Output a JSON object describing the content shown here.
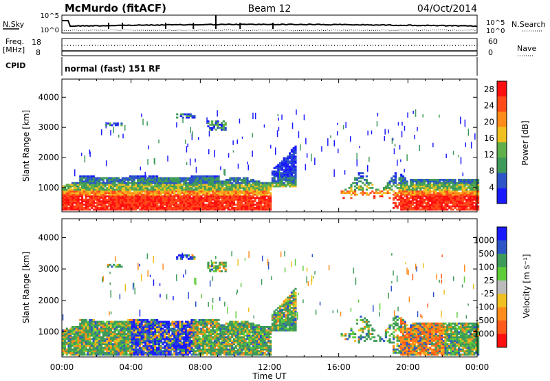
{
  "header": {
    "station": "McMurdo (fitACF)",
    "beam": "Beam 12",
    "date": "04/Oct/2014"
  },
  "noise_panel": {
    "left_label": "N.Sky",
    "left_ticks": [
      "10^5",
      "10^0"
    ],
    "right_label": "N.Search",
    "right_ticks": [
      "10^5",
      "10^0"
    ]
  },
  "freq_panel": {
    "left_label_1": "Freq.",
    "left_label_2": "[MHz]",
    "left_ticks": [
      "18",
      "8"
    ],
    "right_label": "Nave",
    "right_ticks": [
      "60",
      "0"
    ]
  },
  "cpid": {
    "label": "CPID",
    "text": "normal (fast) 151 RF"
  },
  "colors": {
    "power_scale": [
      "#1a1aff",
      "#2d55c8",
      "#3f9a5a",
      "#5fb04a",
      "#f0c020",
      "#ff8c1a",
      "#ff4a1a",
      "#ff1010"
    ],
    "velocity_scale": [
      "#1a1aff",
      "#2d55c8",
      "#3f9a5a",
      "#5fcc3a",
      "#bbbbbb",
      "#f0c020",
      "#ff8c1a",
      "#ff5a1a",
      "#ff1010"
    ]
  },
  "chart_data": [
    {
      "type": "heatmap",
      "name_print": "",
      "xlabel": "Time UT",
      "ylabel": "Slant Range [km]",
      "x_ticks": [
        "00:00",
        "04:00",
        "08:00",
        "12:00",
        "16:00",
        "20:00",
        "00:00"
      ],
      "y_ticks": [
        1000,
        2000,
        3000,
        4000
      ],
      "ylim": [
        200,
        4600
      ],
      "xlim_hours": [
        0,
        24
      ],
      "colorbar": {
        "label": "Power [dB]",
        "ticks": [
          4,
          8,
          12,
          16,
          20,
          24,
          28
        ],
        "range": [
          0,
          30
        ]
      }
    },
    {
      "type": "heatmap",
      "xlabel": "Time UT",
      "ylabel": "Slant Range [km]",
      "x_ticks": [
        "00:00",
        "04:00",
        "08:00",
        "12:00",
        "16:00",
        "20:00",
        "00:00"
      ],
      "y_ticks": [
        1000,
        2000,
        3000,
        4000
      ],
      "ylim": [
        200,
        4600
      ],
      "xlim_hours": [
        0,
        24
      ],
      "colorbar": {
        "label": "Velocity [m s⁻¹]",
        "ticks": [
          "1000",
          "500",
          "100",
          "25",
          "-25",
          "-100",
          "-500",
          "-1000"
        ]
      }
    }
  ]
}
